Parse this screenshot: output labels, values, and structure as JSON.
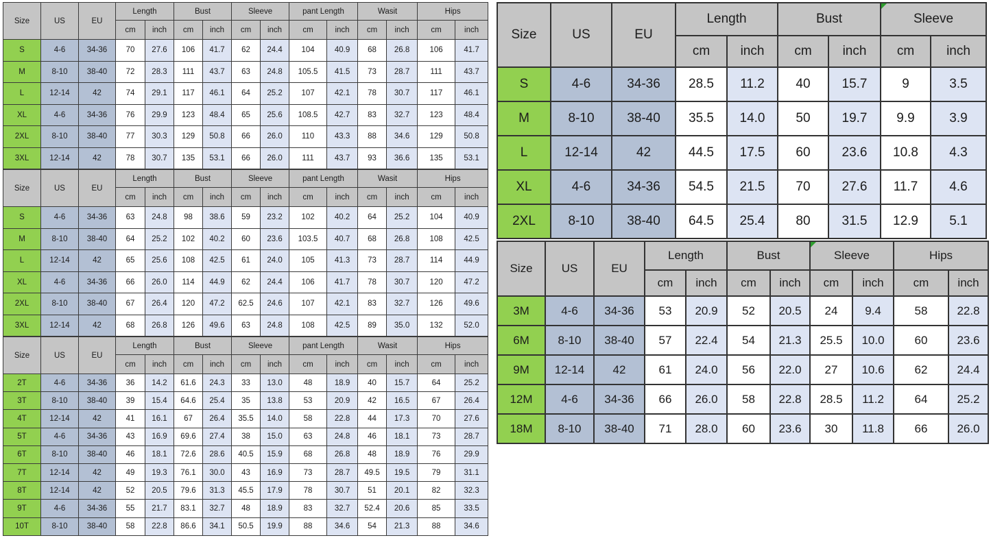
{
  "colors": {
    "header_bg": "#c5c5c5",
    "size_col_bg": "#92d050",
    "us_eu_col_bg": "#b3c0d4",
    "inch_col_bg": "#dde4f3",
    "cm_col_bg": "#ffffff",
    "border": "#3a3a3a",
    "comment_marker": "#2e9e2e"
  },
  "tables": [
    {
      "name": "adult-set-1",
      "size_header": "Size",
      "us_header": "US",
      "eu_header": "EU",
      "unit_cm": "cm",
      "unit_inch": "inch",
      "groups": [
        {
          "label": "Length"
        },
        {
          "label": "Bust"
        },
        {
          "label": "Sleeve"
        },
        {
          "label": "pant Length"
        },
        {
          "label": "Wasit"
        },
        {
          "label": "Hips"
        }
      ],
      "rows": [
        {
          "size": "S",
          "us": "4-6",
          "eu": "34-36",
          "values": [
            "70",
            "27.6",
            "106",
            "41.7",
            "62",
            "24.4",
            "104",
            "40.9",
            "68",
            "26.8",
            "106",
            "41.7"
          ]
        },
        {
          "size": "M",
          "us": "8-10",
          "eu": "38-40",
          "values": [
            "72",
            "28.3",
            "111",
            "43.7",
            "63",
            "24.8",
            "105.5",
            "41.5",
            "73",
            "28.7",
            "111",
            "43.7"
          ]
        },
        {
          "size": "L",
          "us": "12-14",
          "eu": "42",
          "values": [
            "74",
            "29.1",
            "117",
            "46.1",
            "64",
            "25.2",
            "107",
            "42.1",
            "78",
            "30.7",
            "117",
            "46.1"
          ]
        },
        {
          "size": "XL",
          "us": "4-6",
          "eu": "34-36",
          "values": [
            "76",
            "29.9",
            "123",
            "48.4",
            "65",
            "25.6",
            "108.5",
            "42.7",
            "83",
            "32.7",
            "123",
            "48.4"
          ]
        },
        {
          "size": "2XL",
          "us": "8-10",
          "eu": "38-40",
          "values": [
            "77",
            "30.3",
            "129",
            "50.8",
            "66",
            "26.0",
            "110",
            "43.3",
            "88",
            "34.6",
            "129",
            "50.8"
          ]
        },
        {
          "size": "3XL",
          "us": "12-14",
          "eu": "42",
          "values": [
            "78",
            "30.7",
            "135",
            "53.1",
            "66",
            "26.0",
            "111",
            "43.7",
            "93",
            "36.6",
            "135",
            "53.1"
          ]
        }
      ]
    },
    {
      "name": "adult-set-2",
      "size_header": "Size",
      "us_header": "US",
      "eu_header": "EU",
      "unit_cm": "cm",
      "unit_inch": "inch",
      "groups": [
        {
          "label": "Length"
        },
        {
          "label": "Bust"
        },
        {
          "label": "Sleeve"
        },
        {
          "label": "pant Length"
        },
        {
          "label": "Wasit"
        },
        {
          "label": "Hips"
        }
      ],
      "rows": [
        {
          "size": "S",
          "us": "4-6",
          "eu": "34-36",
          "values": [
            "63",
            "24.8",
            "98",
            "38.6",
            "59",
            "23.2",
            "102",
            "40.2",
            "64",
            "25.2",
            "104",
            "40.9"
          ]
        },
        {
          "size": "M",
          "us": "8-10",
          "eu": "38-40",
          "values": [
            "64",
            "25.2",
            "102",
            "40.2",
            "60",
            "23.6",
            "103.5",
            "40.7",
            "68",
            "26.8",
            "108",
            "42.5"
          ]
        },
        {
          "size": "L",
          "us": "12-14",
          "eu": "42",
          "values": [
            "65",
            "25.6",
            "108",
            "42.5",
            "61",
            "24.0",
            "105",
            "41.3",
            "73",
            "28.7",
            "114",
            "44.9"
          ]
        },
        {
          "size": "XL",
          "us": "4-6",
          "eu": "34-36",
          "values": [
            "66",
            "26.0",
            "114",
            "44.9",
            "62",
            "24.4",
            "106",
            "41.7",
            "78",
            "30.7",
            "120",
            "47.2"
          ]
        },
        {
          "size": "2XL",
          "us": "8-10",
          "eu": "38-40",
          "values": [
            "67",
            "26.4",
            "120",
            "47.2",
            "62.5",
            "24.6",
            "107",
            "42.1",
            "83",
            "32.7",
            "126",
            "49.6"
          ]
        },
        {
          "size": "3XL",
          "us": "12-14",
          "eu": "42",
          "values": [
            "68",
            "26.8",
            "126",
            "49.6",
            "63",
            "24.8",
            "108",
            "42.5",
            "89",
            "35.0",
            "132",
            "52.0"
          ]
        }
      ]
    },
    {
      "name": "toddler-set",
      "size_header": "Size",
      "us_header": "US",
      "eu_header": "EU",
      "unit_cm": "cm",
      "unit_inch": "inch",
      "groups": [
        {
          "label": "Length"
        },
        {
          "label": "Bust"
        },
        {
          "label": "Sleeve"
        },
        {
          "label": "pant Length"
        },
        {
          "label": "Wasit"
        },
        {
          "label": "Hips"
        }
      ],
      "rows": [
        {
          "size": "2T",
          "us": "4-6",
          "eu": "34-36",
          "values": [
            "36",
            "14.2",
            "61.6",
            "24.3",
            "33",
            "13.0",
            "48",
            "18.9",
            "40",
            "15.7",
            "64",
            "25.2"
          ]
        },
        {
          "size": "3T",
          "us": "8-10",
          "eu": "38-40",
          "values": [
            "39",
            "15.4",
            "64.6",
            "25.4",
            "35",
            "13.8",
            "53",
            "20.9",
            "42",
            "16.5",
            "67",
            "26.4"
          ]
        },
        {
          "size": "4T",
          "us": "12-14",
          "eu": "42",
          "values": [
            "41",
            "16.1",
            "67",
            "26.4",
            "35.5",
            "14.0",
            "58",
            "22.8",
            "44",
            "17.3",
            "70",
            "27.6"
          ]
        },
        {
          "size": "5T",
          "us": "4-6",
          "eu": "34-36",
          "values": [
            "43",
            "16.9",
            "69.6",
            "27.4",
            "38",
            "15.0",
            "63",
            "24.8",
            "46",
            "18.1",
            "73",
            "28.7"
          ]
        },
        {
          "size": "6T",
          "us": "8-10",
          "eu": "38-40",
          "values": [
            "46",
            "18.1",
            "72.6",
            "28.6",
            "40.5",
            "15.9",
            "68",
            "26.8",
            "48",
            "18.9",
            "76",
            "29.9"
          ]
        },
        {
          "size": "7T",
          "us": "12-14",
          "eu": "42",
          "values": [
            "49",
            "19.3",
            "76.1",
            "30.0",
            "43",
            "16.9",
            "73",
            "28.7",
            "49.5",
            "19.5",
            "79",
            "31.1"
          ]
        },
        {
          "size": "8T",
          "us": "12-14",
          "eu": "42",
          "values": [
            "52",
            "20.5",
            "79.6",
            "31.3",
            "45.5",
            "17.9",
            "78",
            "30.7",
            "51",
            "20.1",
            "82",
            "32.3"
          ]
        },
        {
          "size": "9T",
          "us": "4-6",
          "eu": "34-36",
          "values": [
            "55",
            "21.7",
            "83.1",
            "32.7",
            "48",
            "18.9",
            "83",
            "32.7",
            "52.4",
            "20.6",
            "85",
            "33.5"
          ]
        },
        {
          "size": "10T",
          "us": "8-10",
          "eu": "38-40",
          "values": [
            "58",
            "22.8",
            "86.6",
            "34.1",
            "50.5",
            "19.9",
            "88",
            "34.6",
            "54",
            "21.3",
            "88",
            "34.6"
          ]
        }
      ]
    },
    {
      "name": "kids-sml-set",
      "size_header": "Size",
      "us_header": "US",
      "eu_header": "EU",
      "unit_cm": "cm",
      "unit_inch": "inch",
      "groups": [
        {
          "label": "Length"
        },
        {
          "label": "Bust"
        },
        {
          "label": "Sleeve",
          "marker": true
        }
      ],
      "rows": [
        {
          "size": "S",
          "us": "4-6",
          "eu": "34-36",
          "values": [
            "28.5",
            "11.2",
            "40",
            "15.7",
            "9",
            "3.5"
          ]
        },
        {
          "size": "M",
          "us": "8-10",
          "eu": "38-40",
          "values": [
            "35.5",
            "14.0",
            "50",
            "19.7",
            "9.9",
            "3.9"
          ]
        },
        {
          "size": "L",
          "us": "12-14",
          "eu": "42",
          "values": [
            "44.5",
            "17.5",
            "60",
            "23.6",
            "10.8",
            "4.3"
          ]
        },
        {
          "size": "XL",
          "us": "4-6",
          "eu": "34-36",
          "values": [
            "54.5",
            "21.5",
            "70",
            "27.6",
            "11.7",
            "4.6"
          ]
        },
        {
          "size": "2XL",
          "us": "8-10",
          "eu": "38-40",
          "values": [
            "64.5",
            "25.4",
            "80",
            "31.5",
            "12.9",
            "5.1"
          ]
        }
      ]
    },
    {
      "name": "baby-months-set",
      "size_header": "Size",
      "us_header": "US",
      "eu_header": "EU",
      "unit_cm": "cm",
      "unit_inch": "inch",
      "groups": [
        {
          "label": "Length"
        },
        {
          "label": "Bust"
        },
        {
          "label": "Sleeve",
          "marker": true
        },
        {
          "label": "Hips"
        }
      ],
      "rows": [
        {
          "size": "3M",
          "us": "4-6",
          "eu": "34-36",
          "values": [
            "53",
            "20.9",
            "52",
            "20.5",
            "24",
            "9.4",
            "58",
            "22.8"
          ]
        },
        {
          "size": "6M",
          "us": "8-10",
          "eu": "38-40",
          "values": [
            "57",
            "22.4",
            "54",
            "21.3",
            "25.5",
            "10.0",
            "60",
            "23.6"
          ]
        },
        {
          "size": "9M",
          "us": "12-14",
          "eu": "42",
          "values": [
            "61",
            "24.0",
            "56",
            "22.0",
            "27",
            "10.6",
            "62",
            "24.4"
          ]
        },
        {
          "size": "12M",
          "us": "4-6",
          "eu": "34-36",
          "values": [
            "66",
            "26.0",
            "58",
            "22.8",
            "28.5",
            "11.2",
            "64",
            "25.2"
          ]
        },
        {
          "size": "18M",
          "us": "8-10",
          "eu": "38-40",
          "values": [
            "71",
            "28.0",
            "60",
            "23.6",
            "30",
            "11.8",
            "66",
            "26.0"
          ]
        }
      ]
    }
  ]
}
